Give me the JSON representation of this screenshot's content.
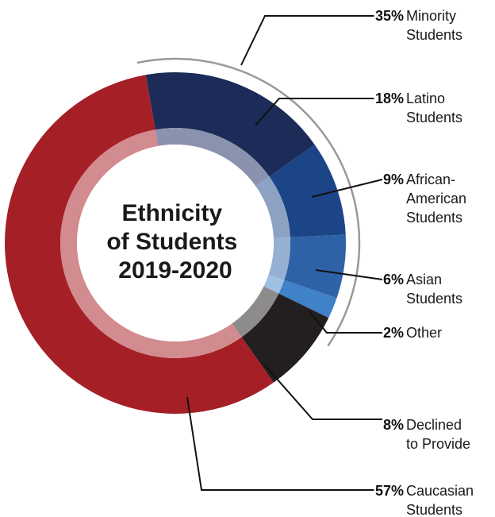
{
  "chart_data": {
    "type": "pie",
    "title_lines": [
      "Ethnicity",
      "of Students",
      "2019-2020"
    ],
    "slices": [
      {
        "key": "latino",
        "value": 18,
        "pct_label": "18%",
        "label_lines": [
          "Latino",
          "Students"
        ],
        "color": "#1c2b57",
        "inner_color": "#8b92ad"
      },
      {
        "key": "african",
        "value": 9,
        "pct_label": "9%",
        "label_lines": [
          "African-",
          "American",
          "Students"
        ],
        "color": "#1c4587",
        "inner_color": "#8da2c3"
      },
      {
        "key": "asian",
        "value": 6,
        "pct_label": "6%",
        "label_lines": [
          "Asian",
          "Students"
        ],
        "color": "#2e62a7",
        "inner_color": "#96b0d3"
      },
      {
        "key": "other",
        "value": 2,
        "pct_label": "2%",
        "label_lines": [
          "Other"
        ],
        "color": "#3f82c8",
        "inner_color": "#9fc0e3"
      },
      {
        "key": "declined",
        "value": 8,
        "pct_label": "8%",
        "label_lines": [
          "Declined",
          "to Provide"
        ],
        "color": "#231f20",
        "inner_color": "#8e8b8c"
      },
      {
        "key": "caucasian",
        "value": 57,
        "pct_label": "57%",
        "label_lines": [
          "Caucasian",
          "Students"
        ],
        "color": "#a51f27",
        "inner_color": "#d28b8e"
      }
    ],
    "group": {
      "pct_label": "35%",
      "label_lines": [
        "Minority",
        "Students"
      ],
      "members": [
        "latino",
        "african",
        "asian",
        "other"
      ],
      "color": "#999999"
    }
  }
}
